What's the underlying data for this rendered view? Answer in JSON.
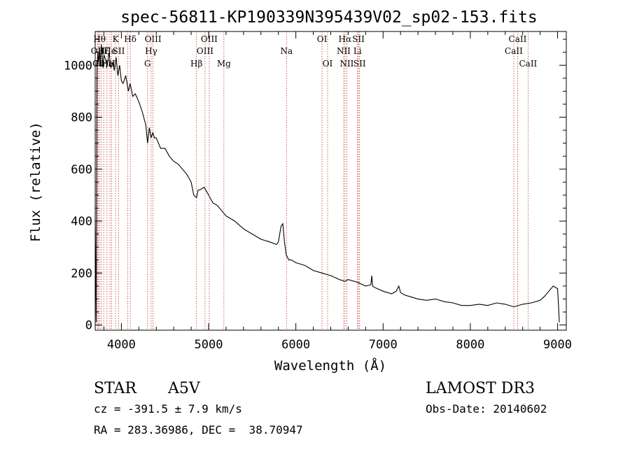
{
  "chart_data": {
    "type": "line",
    "title": "spec-56811-KP190339N395439V02_sp02-153.fits",
    "xlabel": "Wavelength (Å)",
    "ylabel": "Flux (relative)",
    "xlim": [
      3700,
      9100
    ],
    "ylim": [
      -20,
      1130
    ],
    "x_ticks": [
      4000,
      5000,
      6000,
      7000,
      8000,
      9000
    ],
    "y_ticks": [
      0,
      200,
      400,
      600,
      800,
      1000
    ],
    "grid": false,
    "series": [
      {
        "name": "flux",
        "x": [
          3700,
          3712,
          3720,
          3730,
          3740,
          3750,
          3760,
          3770,
          3780,
          3790,
          3800,
          3820,
          3840,
          3860,
          3880,
          3900,
          3920,
          3940,
          3960,
          3980,
          4000,
          4020,
          4050,
          4080,
          4100,
          4130,
          4160,
          4200,
          4240,
          4280,
          4300,
          4320,
          4340,
          4360,
          4380,
          4400,
          4450,
          4500,
          4550,
          4600,
          4650,
          4700,
          4750,
          4800,
          4830,
          4861,
          4880,
          4900,
          4950,
          5000,
          5050,
          5100,
          5150,
          5200,
          5300,
          5400,
          5500,
          5600,
          5700,
          5780,
          5800,
          5830,
          5850,
          5870,
          5890,
          5920,
          5950,
          6000,
          6100,
          6200,
          6300,
          6400,
          6500,
          6562,
          6600,
          6700,
          6800,
          6860,
          6870,
          6880,
          6900,
          7000,
          7100,
          7150,
          7180,
          7200,
          7250,
          7300,
          7400,
          7500,
          7600,
          7700,
          7800,
          7900,
          8000,
          8100,
          8200,
          8300,
          8400,
          8500,
          8600,
          8700,
          8800,
          8850,
          8900,
          8950,
          9000,
          9010,
          9020
        ],
        "y": [
          400,
          10,
          980,
          1050,
          1010,
          1060,
          1000,
          1080,
          1040,
          990,
          1040,
          1020,
          1000,
          1050,
          990,
          1010,
          980,
          1030,
          960,
          1000,
          940,
          930,
          960,
          900,
          930,
          880,
          890,
          860,
          820,
          770,
          700,
          760,
          720,
          740,
          720,
          720,
          680,
          680,
          650,
          630,
          620,
          600,
          580,
          550,
          500,
          490,
          520,
          520,
          530,
          500,
          470,
          460,
          440,
          420,
          400,
          370,
          350,
          330,
          320,
          310,
          320,
          380,
          390,
          320,
          270,
          250,
          250,
          240,
          230,
          210,
          200,
          190,
          175,
          168,
          175,
          165,
          150,
          155,
          190,
          150,
          145,
          130,
          120,
          130,
          150,
          125,
          115,
          110,
          100,
          95,
          100,
          90,
          85,
          75,
          75,
          80,
          75,
          85,
          80,
          70,
          80,
          85,
          95,
          110,
          130,
          150,
          140,
          80,
          10
        ]
      }
    ],
    "lines": [
      {
        "wl": 3727,
        "label": "OII",
        "row": 1
      },
      {
        "wl": 3734,
        "label": "Ca",
        "row": 2
      },
      {
        "wl": 3750,
        "label": "Hθ",
        "row": 0
      },
      {
        "wl": 3770,
        "label": "Hη",
        "row": 2
      },
      {
        "wl": 3798,
        "label": "Hζ",
        "row": 1
      },
      {
        "wl": 3835,
        "label": "Hε",
        "row": 2
      },
      {
        "wl": 3869,
        "label": "He",
        "row": 1
      },
      {
        "wl": 3889,
        "label": "H",
        "row": 2
      },
      {
        "wl": 3934,
        "label": "K",
        "row": 0
      },
      {
        "wl": 3969,
        "label": "SII",
        "row": 1
      },
      {
        "wl": 4072,
        "label": "",
        "row": 1
      },
      {
        "wl": 4102,
        "label": "Hδ",
        "row": 0
      },
      {
        "wl": 4300,
        "label": "G",
        "row": 2
      },
      {
        "wl": 4341,
        "label": "Hγ",
        "row": 1
      },
      {
        "wl": 4363,
        "label": "OIII",
        "row": 0
      },
      {
        "wl": 4861,
        "label": "Hβ",
        "row": 2
      },
      {
        "wl": 4959,
        "label": "OIII",
        "row": 1
      },
      {
        "wl": 5007,
        "label": "OIII",
        "row": 0
      },
      {
        "wl": 5175,
        "label": "Mg",
        "row": 2
      },
      {
        "wl": 5893,
        "label": "Na",
        "row": 1
      },
      {
        "wl": 6300,
        "label": "OI",
        "row": 0
      },
      {
        "wl": 6364,
        "label": "OI",
        "row": 2
      },
      {
        "wl": 6548,
        "label": "NII",
        "row": 1
      },
      {
        "wl": 6563,
        "label": "Hα",
        "row": 0
      },
      {
        "wl": 6584,
        "label": "NII",
        "row": 2
      },
      {
        "wl": 6707,
        "label": "Li",
        "row": 1
      },
      {
        "wl": 6717,
        "label": "SII",
        "row": 0
      },
      {
        "wl": 6731,
        "label": "SII",
        "row": 2
      },
      {
        "wl": 8498,
        "label": "CaII",
        "row": 1
      },
      {
        "wl": 8542,
        "label": "CaII",
        "row": 0
      },
      {
        "wl": 8662,
        "label": "CaII",
        "row": 2
      }
    ]
  },
  "info": {
    "class": "STAR",
    "subclass": "A5V",
    "survey": "LAMOST DR3",
    "cz": "cz = -391.5 ± 7.9 km/s",
    "obsdate": "Obs-Date: 20140602",
    "radec": "RA = 283.36986, DEC =  38.70947"
  }
}
